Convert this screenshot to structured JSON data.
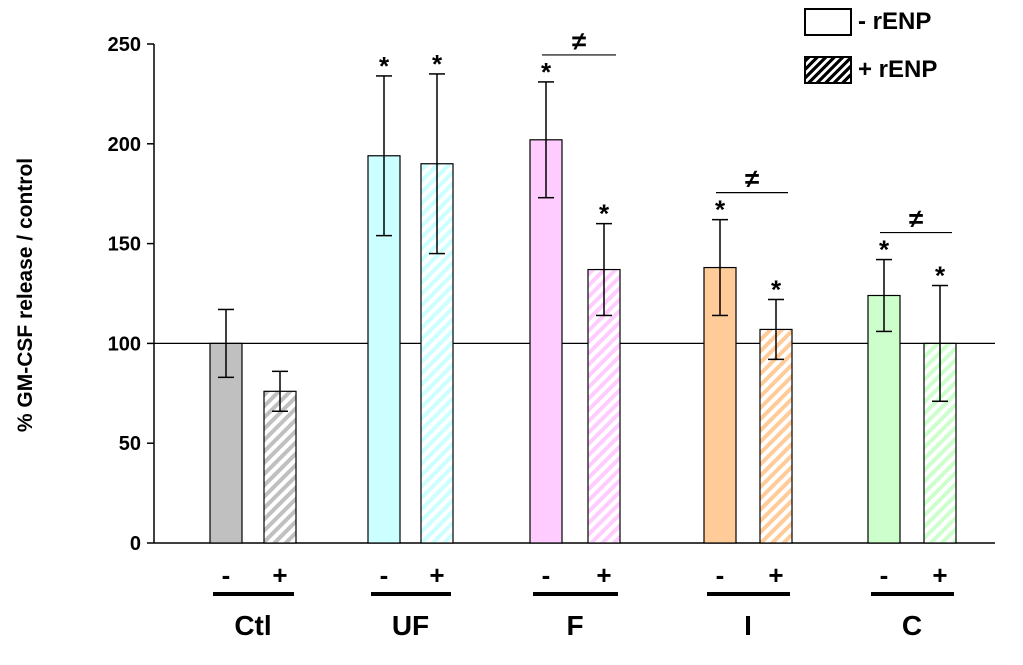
{
  "chart_data": {
    "type": "bar",
    "ylabel": "% GM-CSF release / control",
    "ylim": [
      0,
      250
    ],
    "yticks": [
      "0",
      "50",
      "100",
      "150",
      "200",
      "250"
    ],
    "reference_line": 100,
    "groups": [
      {
        "label": "Ctl",
        "color": "#c0c0c0"
      },
      {
        "label": "UF",
        "color": "#ccffff"
      },
      {
        "label": "F",
        "color": "#ffccff"
      },
      {
        "label": "I",
        "color": "#ffcc99"
      },
      {
        "label": "C",
        "color": "#ccffcc"
      }
    ],
    "conditions": [
      "-",
      "+"
    ],
    "series": [
      {
        "name": "- rENP",
        "values": [
          100,
          194,
          202,
          138,
          124
        ],
        "errors": [
          17,
          40,
          29,
          24,
          18
        ],
        "significant": [
          false,
          true,
          true,
          true,
          true
        ]
      },
      {
        "name": "+ rENP",
        "values": [
          76,
          190,
          137,
          107,
          100
        ],
        "errors": [
          10,
          45,
          23,
          15,
          29
        ],
        "significant": [
          false,
          true,
          true,
          true,
          true
        ]
      }
    ],
    "significance_marker": "*",
    "difference_marker": "≠",
    "difference_groups": [
      "F",
      "I",
      "C"
    ],
    "legend": [
      {
        "label": "- rENP",
        "pattern": "plain"
      },
      {
        "label": "+ rENP",
        "pattern": "hatch"
      }
    ],
    "legend_position": "top-right"
  }
}
